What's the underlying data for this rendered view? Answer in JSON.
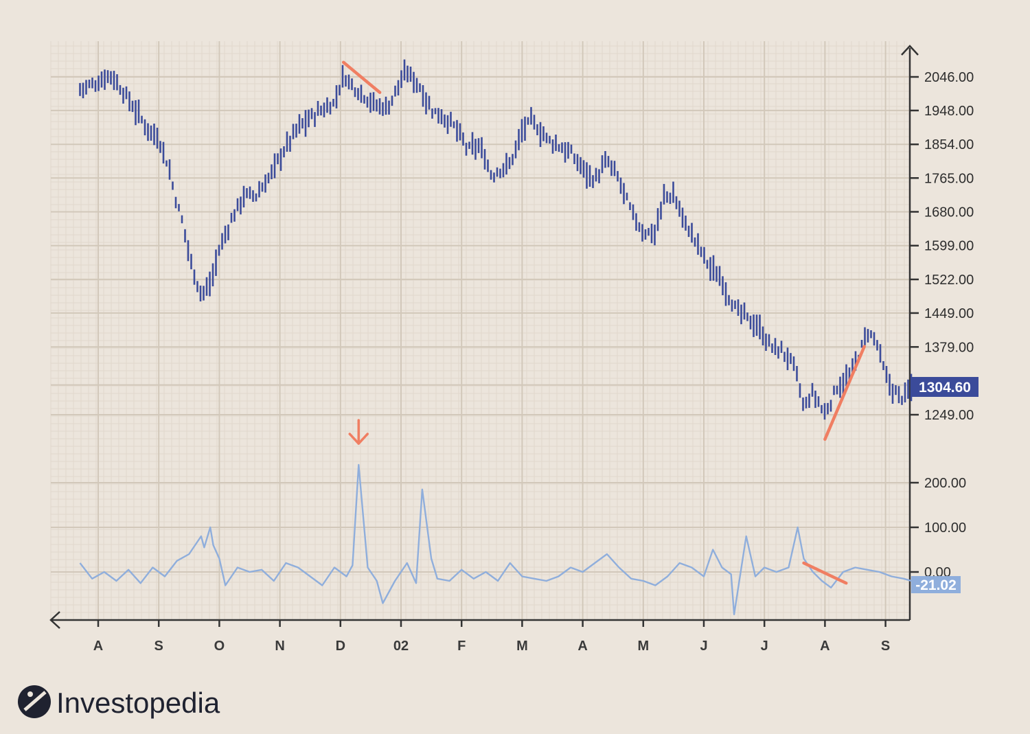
{
  "brand": {
    "name": "Investopedia"
  },
  "colors": {
    "background": "#ece5dc",
    "grid_minor": "#e1d8cc",
    "grid_major": "#d2c8ba",
    "axis": "#333333",
    "price_bars": "#3b4b9a",
    "oscillator": "#8faedc",
    "annotation": "#f07e62",
    "price_tag": "#3b4b9a",
    "oscillator_tag": "#8faedc"
  },
  "chart_data": {
    "type": "bar",
    "description_units": "price (OHLC-style vertical range bars) with an oscillator line panel below",
    "x_axis": {
      "ticks": [
        "A",
        "S",
        "O",
        "N",
        "D",
        "02",
        "F",
        "M",
        "A",
        "M",
        "J",
        "J",
        "A",
        "S"
      ]
    },
    "price_panel": {
      "y_ticks": [
        "2046.00",
        "1948.00",
        "1854.00",
        "1765.00",
        "1680.00",
        "1599.00",
        "1522.00",
        "1449.00",
        "1379.00",
        "1249.00"
      ],
      "y_tick_values": [
        2046,
        1948,
        1854,
        1765,
        1680,
        1599,
        1522,
        1449,
        1379,
        1249
      ],
      "current_value_label": "1304.60",
      "current_value": 1304.6,
      "anchors_month_index_value": [
        [
          -0.3,
          2010
        ],
        [
          0.0,
          2030
        ],
        [
          0.2,
          2055
        ],
        [
          0.5,
          1980
        ],
        [
          0.8,
          1900
        ],
        [
          1.0,
          1870
        ],
        [
          1.15,
          1800
        ],
        [
          1.3,
          1700
        ],
        [
          1.4,
          1650
        ],
        [
          1.55,
          1550
        ],
        [
          1.7,
          1490
        ],
        [
          1.85,
          1510
        ],
        [
          2.0,
          1590
        ],
        [
          2.2,
          1660
        ],
        [
          2.4,
          1720
        ],
        [
          2.6,
          1720
        ],
        [
          2.8,
          1760
        ],
        [
          3.0,
          1820
        ],
        [
          3.3,
          1900
        ],
        [
          3.6,
          1940
        ],
        [
          3.9,
          1970
        ],
        [
          4.05,
          2050
        ],
        [
          4.2,
          2020
        ],
        [
          4.4,
          1990
        ],
        [
          4.6,
          1960
        ],
        [
          4.8,
          1960
        ],
        [
          4.95,
          2020
        ],
        [
          5.1,
          2060
        ],
        [
          5.3,
          2020
        ],
        [
          5.5,
          1950
        ],
        [
          5.7,
          1930
        ],
        [
          5.9,
          1900
        ],
        [
          6.1,
          1840
        ],
        [
          6.3,
          1850
        ],
        [
          6.5,
          1770
        ],
        [
          6.65,
          1790
        ],
        [
          6.8,
          1800
        ],
        [
          7.0,
          1890
        ],
        [
          7.15,
          1920
        ],
        [
          7.4,
          1870
        ],
        [
          7.6,
          1850
        ],
        [
          7.8,
          1830
        ],
        [
          8.0,
          1790
        ],
        [
          8.2,
          1760
        ],
        [
          8.4,
          1810
        ],
        [
          8.6,
          1760
        ],
        [
          8.8,
          1680
        ],
        [
          9.0,
          1630
        ],
        [
          9.2,
          1630
        ],
        [
          9.35,
          1720
        ],
        [
          9.5,
          1720
        ],
        [
          9.7,
          1650
        ],
        [
          9.9,
          1600
        ],
        [
          10.1,
          1550
        ],
        [
          10.3,
          1520
        ],
        [
          10.5,
          1460
        ],
        [
          10.7,
          1440
        ],
        [
          10.9,
          1420
        ],
        [
          11.1,
          1380
        ],
        [
          11.3,
          1370
        ],
        [
          11.5,
          1340
        ],
        [
          11.65,
          1260
        ],
        [
          11.8,
          1290
        ],
        [
          12.0,
          1250
        ],
        [
          12.2,
          1300
        ],
        [
          12.4,
          1320
        ],
        [
          12.55,
          1360
        ],
        [
          12.7,
          1410
        ],
        [
          12.85,
          1390
        ],
        [
          13.0,
          1320
        ],
        [
          13.15,
          1290
        ],
        [
          13.3,
          1280
        ],
        [
          13.45,
          1305
        ]
      ],
      "trend_lines": [
        {
          "from": [
            4.05,
            2090
          ],
          "to": [
            4.65,
            2000
          ]
        },
        {
          "from": [
            12.0,
            1205
          ],
          "to": [
            12.65,
            1380
          ]
        }
      ]
    },
    "oscillator_panel": {
      "y_ticks": [
        "200.00",
        "100.00",
        "0.00"
      ],
      "y_tick_values": [
        200,
        100,
        0
      ],
      "current_value_label": "-21.02",
      "current_value": -21.02,
      "anchors_month_index_value": [
        [
          -0.3,
          20
        ],
        [
          -0.1,
          -15
        ],
        [
          0.1,
          0
        ],
        [
          0.3,
          -20
        ],
        [
          0.5,
          5
        ],
        [
          0.7,
          -25
        ],
        [
          0.9,
          10
        ],
        [
          1.1,
          -10
        ],
        [
          1.3,
          25
        ],
        [
          1.5,
          40
        ],
        [
          1.7,
          80
        ],
        [
          1.75,
          55
        ],
        [
          1.85,
          100
        ],
        [
          1.9,
          60
        ],
        [
          2.0,
          30
        ],
        [
          2.1,
          -30
        ],
        [
          2.3,
          10
        ],
        [
          2.5,
          0
        ],
        [
          2.7,
          5
        ],
        [
          2.9,
          -20
        ],
        [
          3.1,
          20
        ],
        [
          3.3,
          10
        ],
        [
          3.5,
          -10
        ],
        [
          3.7,
          -30
        ],
        [
          3.9,
          10
        ],
        [
          4.1,
          -10
        ],
        [
          4.2,
          15
        ],
        [
          4.3,
          240
        ],
        [
          4.45,
          10
        ],
        [
          4.6,
          -20
        ],
        [
          4.7,
          -70
        ],
        [
          4.9,
          -20
        ],
        [
          5.1,
          20
        ],
        [
          5.25,
          -25
        ],
        [
          5.35,
          185
        ],
        [
          5.5,
          30
        ],
        [
          5.6,
          -15
        ],
        [
          5.8,
          -20
        ],
        [
          6.0,
          5
        ],
        [
          6.2,
          -15
        ],
        [
          6.4,
          0
        ],
        [
          6.6,
          -20
        ],
        [
          6.8,
          20
        ],
        [
          7.0,
          -10
        ],
        [
          7.2,
          -15
        ],
        [
          7.4,
          -20
        ],
        [
          7.6,
          -10
        ],
        [
          7.8,
          10
        ],
        [
          8.0,
          0
        ],
        [
          8.2,
          20
        ],
        [
          8.4,
          40
        ],
        [
          8.6,
          10
        ],
        [
          8.8,
          -15
        ],
        [
          9.0,
          -20
        ],
        [
          9.2,
          -30
        ],
        [
          9.4,
          -10
        ],
        [
          9.6,
          20
        ],
        [
          9.8,
          10
        ],
        [
          10.0,
          -10
        ],
        [
          10.15,
          50
        ],
        [
          10.3,
          10
        ],
        [
          10.45,
          -5
        ],
        [
          10.5,
          -95
        ],
        [
          10.7,
          80
        ],
        [
          10.85,
          -10
        ],
        [
          11.0,
          10
        ],
        [
          11.2,
          0
        ],
        [
          11.4,
          10
        ],
        [
          11.55,
          100
        ],
        [
          11.65,
          30
        ],
        [
          11.8,
          0
        ],
        [
          11.95,
          -20
        ],
        [
          12.1,
          -35
        ],
        [
          12.3,
          0
        ],
        [
          12.5,
          10
        ],
        [
          12.7,
          5
        ],
        [
          12.9,
          0
        ],
        [
          13.1,
          -10
        ],
        [
          13.3,
          -15
        ],
        [
          13.45,
          -21
        ]
      ],
      "trend_lines": [
        {
          "from": [
            11.65,
            20
          ],
          "to": [
            12.35,
            -25
          ]
        }
      ],
      "arrow_marker_month_index": 4.3
    }
  }
}
